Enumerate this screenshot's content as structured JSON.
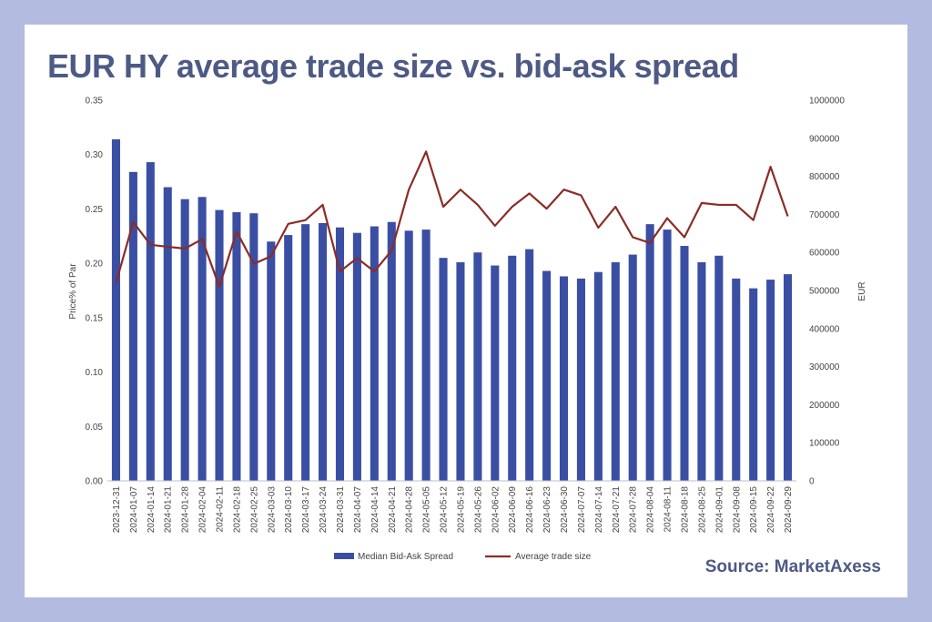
{
  "header": {
    "title": "EUR HY average trade size vs. bid-ask spread"
  },
  "footer": {
    "source": "Source: MarketAxess"
  },
  "colors": {
    "bars": "#3a4fa3",
    "line": "#8b2c26",
    "title": "#4d5a85",
    "background": "#b4bbe0"
  },
  "chart_data": {
    "type": "bar",
    "categories": [
      "2023-12-31",
      "2024-01-07",
      "2024-01-14",
      "2024-01-21",
      "2024-01-28",
      "2024-02-04",
      "2024-02-11",
      "2024-02-18",
      "2024-02-25",
      "2024-03-03",
      "2024-03-10",
      "2024-03-17",
      "2024-03-24",
      "2024-03-31",
      "2024-04-07",
      "2024-04-14",
      "2024-04-21",
      "2024-04-28",
      "2024-05-05",
      "2024-05-12",
      "2024-05-19",
      "2024-05-26",
      "2024-06-02",
      "2024-06-09",
      "2024-06-16",
      "2024-06-23",
      "2024-06-30",
      "2024-07-07",
      "2024-07-14",
      "2024-07-21",
      "2024-07-28",
      "2024-08-04",
      "2024-08-11",
      "2024-08-18",
      "2024-08-25",
      "2024-09-01",
      "2024-09-08",
      "2024-09-15",
      "2024-09-22",
      "2024-09-29"
    ],
    "series": [
      {
        "name": "Median Bid-Ask Spread",
        "type": "bar",
        "axis": "left",
        "values": [
          0.314,
          0.284,
          0.293,
          0.27,
          0.259,
          0.261,
          0.249,
          0.247,
          0.246,
          0.22,
          0.226,
          0.236,
          0.237,
          0.233,
          0.228,
          0.234,
          0.238,
          0.23,
          0.231,
          0.205,
          0.201,
          0.21,
          0.198,
          0.207,
          0.213,
          0.193,
          0.188,
          0.186,
          0.192,
          0.201,
          0.208,
          0.236,
          0.231,
          0.216,
          0.201,
          0.207,
          0.186,
          0.177,
          0.185,
          0.19
        ]
      },
      {
        "name": "Average trade size",
        "type": "line",
        "axis": "right",
        "values": [
          520000,
          680000,
          620000,
          615000,
          610000,
          635000,
          510000,
          655000,
          570000,
          590000,
          675000,
          685000,
          725000,
          550000,
          585000,
          550000,
          605000,
          765000,
          865000,
          720000,
          765000,
          725000,
          670000,
          720000,
          755000,
          715000,
          765000,
          750000,
          665000,
          720000,
          640000,
          625000,
          690000,
          640000,
          730000,
          725000,
          725000,
          685000,
          825000,
          695000
        ]
      }
    ],
    "yleft": {
      "label": "Price% of Par",
      "lim": [
        0,
        0.35
      ],
      "ticks": [
        "0.00",
        "0.05",
        "0.10",
        "0.15",
        "0.20",
        "0.25",
        "0.30",
        "0.35"
      ]
    },
    "yright": {
      "label": "EUR",
      "lim": [
        0,
        1000000
      ],
      "ticks": [
        "0",
        "100000",
        "200000",
        "300000",
        "400000",
        "500000",
        "600000",
        "700000",
        "800000",
        "900000",
        "1000000"
      ]
    },
    "legend": {
      "placement": "bottom"
    },
    "grid": false
  }
}
